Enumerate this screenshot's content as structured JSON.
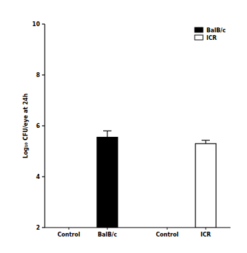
{
  "chart_data": {
    "type": "bar",
    "y_label": "Log₁₀ CFU/eye at 24h",
    "categories": [
      "Control",
      "BalB/c",
      "Control",
      "ICR"
    ],
    "series": [
      {
        "name": "BalB/c",
        "color": "#000000",
        "values": [
          null,
          5.55,
          null,
          null
        ],
        "errors": [
          null,
          0.25,
          null,
          null
        ]
      },
      {
        "name": "ICR",
        "color": "#ffffff",
        "values": [
          null,
          null,
          null,
          5.3
        ],
        "errors": [
          null,
          null,
          null,
          0.13
        ]
      }
    ],
    "ylim": [
      2,
      10
    ],
    "yticks": [
      2,
      4,
      6,
      8,
      10
    ],
    "grid": false,
    "legend": "upper right"
  }
}
